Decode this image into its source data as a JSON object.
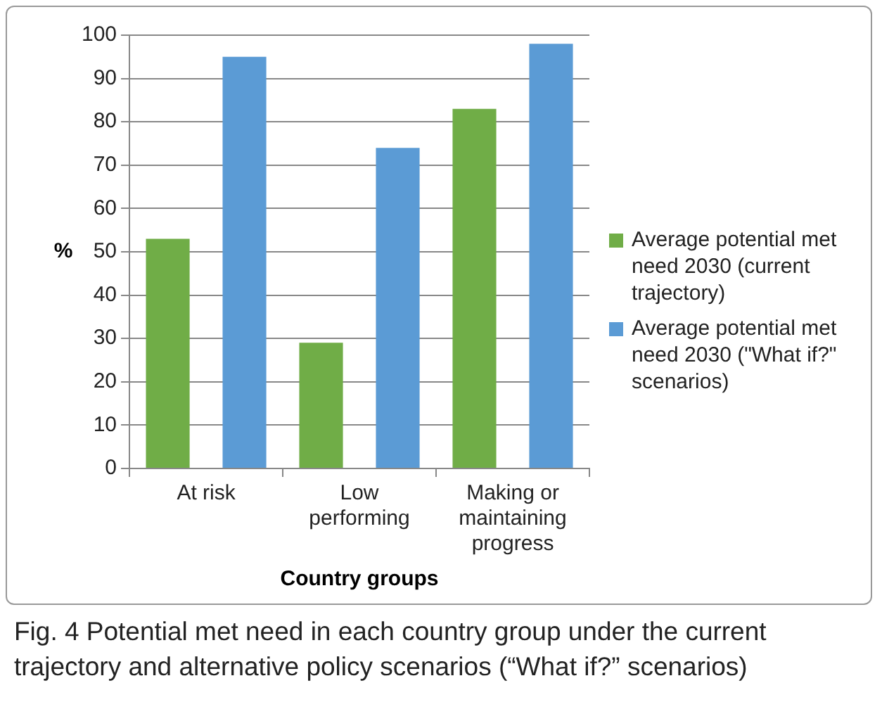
{
  "chart_data": {
    "type": "bar",
    "xlabel": "Country groups",
    "ylabel": "%",
    "categories": [
      "At risk",
      "Low performing",
      "Making or maintaining progress"
    ],
    "series": [
      {
        "name": "Average potential met need 2030 (current trajectory)",
        "color": "#70ad47",
        "values": [
          53,
          29,
          83
        ]
      },
      {
        "name": "Average potential met need 2030 (\"What if?\" scenarios)",
        "color": "#5b9bd5",
        "values": [
          95,
          74,
          98
        ]
      }
    ],
    "ylim": [
      0,
      100
    ],
    "yticks": [
      0,
      10,
      20,
      30,
      40,
      50,
      60,
      70,
      80,
      90,
      100
    ],
    "grid": "y",
    "legend": "right",
    "annotations": [
      "Fig. 4 Potential met need in each country group under the current trajectory and alternative policy scenarios (“What if?” scenarios)"
    ]
  }
}
